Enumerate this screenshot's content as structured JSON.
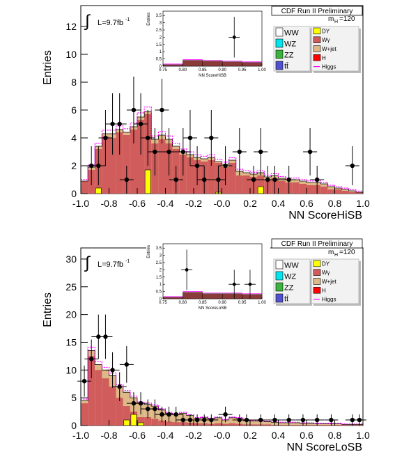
{
  "chart_data": [
    {
      "type": "bar",
      "title": "CDF Run II Preliminary",
      "xlabel": "NN ScoreHiSB",
      "ylabel": "Entries",
      "xlim": [
        -1.0,
        1.0
      ],
      "ylim": [
        0,
        13.5
      ],
      "yticks": [
        0,
        2,
        4,
        6,
        8,
        10,
        12
      ],
      "xticks": [
        "-1.0",
        "-0.8",
        "-0.6",
        "-0.4",
        "-0.2",
        "-0.0",
        "0.2",
        "0.4",
        "0.6",
        "0.8",
        "1.0"
      ],
      "lumi_label": "L=9.7fb",
      "lumi_sup": "-1",
      "integral_symbol": "∫",
      "mass_label": "m",
      "mass_sub": "H",
      "mass_value": "=120",
      "legend_left": [
        "WW",
        "WZ",
        "ZZ",
        "tt̄"
      ],
      "legend_right": [
        "DY",
        "Wγ",
        "W+jet",
        "H",
        "Higgs"
      ],
      "legend_colors": {
        "WW": "#ffffff",
        "WZ": "#00e5ee",
        "ZZ": "#3cb33c",
        "tt̄": "#5050d0",
        "DY": "#ffff00",
        "Wγ": "#d05c5c",
        "W+jet": "#deb887",
        "H": "#ff0000",
        "Higgs": "#ff00ff"
      },
      "bin_edges": [
        -1.0,
        0.05
      ],
      "wjet_top": [
        0.9,
        1.9,
        3.4,
        4.3,
        4.3,
        4.6,
        4.4,
        4.8,
        5.5,
        5.9,
        3.9,
        4.2,
        3.9,
        3.4,
        3.0,
        2.8,
        2.6,
        2.5,
        2.6,
        2.3,
        2.1,
        2.4,
        1.6,
        1.5,
        1.4,
        1.5,
        1.2,
        1.3,
        1.1,
        1.0,
        1.0,
        0.9,
        0.8,
        0.8,
        0.7,
        0.5,
        0.4,
        0.3,
        0.2,
        0.1
      ],
      "wg_top": [
        0.9,
        1.7,
        3.2,
        4.1,
        4.0,
        4.4,
        4.2,
        4.6,
        5.3,
        5.7,
        3.6,
        3.9,
        3.6,
        3.2,
        2.8,
        2.6,
        2.4,
        2.3,
        2.4,
        2.2,
        1.9,
        2.2,
        1.3,
        1.3,
        1.2,
        1.3,
        1.0,
        1.1,
        0.9,
        0.8,
        0.8,
        0.7,
        0.6,
        0.6,
        0.5,
        0.3,
        0.3,
        0.2,
        0.1,
        0.1
      ],
      "dy": [
        0,
        0,
        0.4,
        0,
        0,
        0,
        0,
        0,
        0,
        1.7,
        0,
        0,
        0,
        0,
        0,
        0,
        0,
        0,
        0,
        0.1,
        0,
        0,
        0,
        0,
        0,
        0.5,
        0,
        0,
        0,
        0,
        0,
        0,
        0,
        0,
        0,
        0,
        0,
        0,
        0,
        0
      ],
      "data_points": [
        {
          "x": -0.925,
          "y": 2,
          "err": 1.4
        },
        {
          "x": -0.875,
          "y": 2,
          "err": 1.4
        },
        {
          "x": -0.825,
          "y": 4,
          "err": 2.0
        },
        {
          "x": -0.775,
          "y": 5,
          "err": 2.2
        },
        {
          "x": -0.725,
          "y": 5,
          "err": 2.2
        },
        {
          "x": -0.675,
          "y": 1,
          "err": 1.0
        },
        {
          "x": -0.625,
          "y": 6,
          "err": 2.4
        },
        {
          "x": -0.575,
          "y": 5,
          "err": 2.2
        },
        {
          "x": -0.525,
          "y": 4,
          "err": 2.0
        },
        {
          "x": -0.475,
          "y": 3,
          "err": 1.7
        },
        {
          "x": -0.425,
          "y": 6,
          "err": 2.4
        },
        {
          "x": -0.375,
          "y": 3,
          "err": 1.7
        },
        {
          "x": -0.325,
          "y": 1,
          "err": 1.0
        },
        {
          "x": -0.275,
          "y": 3,
          "err": 1.7
        },
        {
          "x": -0.225,
          "y": 4,
          "err": 2.0
        },
        {
          "x": -0.175,
          "y": 2,
          "err": 1.4
        },
        {
          "x": -0.125,
          "y": 1,
          "err": 1.0
        },
        {
          "x": -0.075,
          "y": 4,
          "err": 2.0
        },
        {
          "x": -0.025,
          "y": 1,
          "err": 1.0
        },
        {
          "x": 0.025,
          "y": 2,
          "err": 1.4
        },
        {
          "x": 0.125,
          "y": 3,
          "err": 1.7
        },
        {
          "x": 0.225,
          "y": 1,
          "err": 1.0
        },
        {
          "x": 0.275,
          "y": 3,
          "err": 1.7
        },
        {
          "x": 0.325,
          "y": 1,
          "err": 1.0
        },
        {
          "x": 0.375,
          "y": 1,
          "err": 1.0
        },
        {
          "x": 0.475,
          "y": 1,
          "err": 1.0
        },
        {
          "x": 0.625,
          "y": 3,
          "err": 1.7
        },
        {
          "x": 0.675,
          "y": 1,
          "err": 1.0
        },
        {
          "x": 0.925,
          "y": 2,
          "err": 1.4
        }
      ],
      "inset": {
        "xlabel": "NN ScoreHiSB",
        "ylabel": "Entries",
        "xlim": [
          0.75,
          1.0
        ],
        "ylim": [
          0,
          3.8
        ],
        "xticks": [
          "0.75",
          "0.80",
          "0.85",
          "0.90",
          "0.95",
          "1.00"
        ],
        "yticks": [
          "0",
          "0.5",
          "1",
          "1.5",
          "2",
          "2.5",
          "3",
          "3.5"
        ],
        "bg_bins": [
          [
            0.75,
            0.8,
            0.1
          ],
          [
            0.8,
            0.85,
            0.4
          ],
          [
            0.85,
            0.9,
            0.35
          ],
          [
            0.9,
            0.95,
            0.3
          ],
          [
            0.95,
            1.0,
            0.25
          ]
        ],
        "data_points": [
          {
            "x": 0.93,
            "y": 2.0,
            "err": 1.4
          }
        ]
      }
    },
    {
      "type": "bar",
      "title": "CDF Run II Preliminary",
      "xlabel": "NN ScoreLoSB",
      "ylabel": "Entries",
      "xlim": [
        -1.0,
        1.0
      ],
      "ylim": [
        0,
        32
      ],
      "yticks": [
        0,
        5,
        10,
        15,
        20,
        25,
        30
      ],
      "xticks": [
        "-1.0",
        "-0.8",
        "-0.6",
        "-0.4",
        "-0.2",
        "-0.0",
        "0.2",
        "0.4",
        "0.6",
        "0.8",
        "1.0"
      ],
      "lumi_label": "L=9.7fb",
      "lumi_sup": "-1",
      "integral_symbol": "∫",
      "mass_label": "m",
      "mass_sub": "H",
      "mass_value": "=120",
      "legend_left": [
        "WW",
        "WZ",
        "ZZ",
        "tt̄"
      ],
      "legend_right": [
        "DY",
        "Wγ",
        "W+jet",
        "H",
        "Higgs"
      ],
      "legend_colors": {
        "WW": "#ffffff",
        "WZ": "#00e5ee",
        "ZZ": "#3cb33c",
        "tt̄": "#5050d0",
        "DY": "#ffff00",
        "Wγ": "#d05c5c",
        "W+jet": "#deb887",
        "H": "#ff0000",
        "Higgs": "#ff00ff"
      },
      "bin_edges": [
        -1.0,
        0.05
      ],
      "wjet_top": [
        4.5,
        13.5,
        11.0,
        10.0,
        9.0,
        7.0,
        6.0,
        5.0,
        4.0,
        3.8,
        3.5,
        2.8,
        2.2,
        2.0,
        2.2,
        1.8,
        1.3,
        1.4,
        1.2,
        1.4,
        1.0,
        1.4,
        1.3,
        0.9,
        0.8,
        0.8,
        0.7,
        0.6,
        0.5,
        0.5,
        0.5,
        0.4,
        0.4,
        0.3,
        0.3,
        0.3,
        0.3,
        0.2,
        0.2,
        0.2
      ],
      "wg_top": [
        4.0,
        12.5,
        10.0,
        8.5,
        7.0,
        5.0,
        3.5,
        2.5,
        1.5,
        1.5,
        1.2,
        0.9,
        0.7,
        0.6,
        0.6,
        0.5,
        0.4,
        0.4,
        0.3,
        0.4,
        0.3,
        0.4,
        0.3,
        0.2,
        0.2,
        0.2,
        0.2,
        0.1,
        0.1,
        0.1,
        0.1,
        0.1,
        0.1,
        0.1,
        0.1,
        0.1,
        0.1,
        0.1,
        0.1,
        0.1
      ],
      "dy": [
        0,
        0,
        0,
        0,
        0,
        0,
        1.0,
        2.0,
        0.5,
        0,
        0,
        0,
        0,
        0,
        0,
        0,
        0,
        0,
        0,
        0,
        0,
        0,
        0,
        0,
        0,
        0,
        0,
        0,
        0,
        0,
        0,
        0,
        0,
        0,
        0,
        0,
        0,
        0,
        0,
        0
      ],
      "data_points": [
        {
          "x": -0.975,
          "y": 8,
          "err": 2.8
        },
        {
          "x": -0.925,
          "y": 12,
          "err": 3.5
        },
        {
          "x": -0.875,
          "y": 16,
          "err": 4.0
        },
        {
          "x": -0.825,
          "y": 16,
          "err": 4.0
        },
        {
          "x": -0.775,
          "y": 10,
          "err": 3.2
        },
        {
          "x": -0.725,
          "y": 7,
          "err": 2.6
        },
        {
          "x": -0.675,
          "y": 11,
          "err": 3.3
        },
        {
          "x": -0.625,
          "y": 4,
          "err": 2.0
        },
        {
          "x": -0.575,
          "y": 4,
          "err": 2.0
        },
        {
          "x": -0.525,
          "y": 3,
          "err": 1.7
        },
        {
          "x": -0.475,
          "y": 3,
          "err": 1.7
        },
        {
          "x": -0.425,
          "y": 2,
          "err": 1.4
        },
        {
          "x": -0.375,
          "y": 2,
          "err": 1.4
        },
        {
          "x": -0.325,
          "y": 2,
          "err": 1.4
        },
        {
          "x": -0.275,
          "y": 1,
          "err": 1.0
        },
        {
          "x": -0.225,
          "y": 1,
          "err": 1.0
        },
        {
          "x": -0.175,
          "y": 1,
          "err": 1.0
        },
        {
          "x": -0.125,
          "y": 1,
          "err": 1.0
        },
        {
          "x": -0.075,
          "y": 1,
          "err": 1.0
        },
        {
          "x": 0.025,
          "y": 2,
          "err": 1.4
        },
        {
          "x": 0.125,
          "y": 1,
          "err": 1.0
        },
        {
          "x": 0.175,
          "y": 1,
          "err": 1.0
        },
        {
          "x": 0.275,
          "y": 1,
          "err": 1.0
        },
        {
          "x": 0.375,
          "y": 1,
          "err": 1.0
        },
        {
          "x": 0.475,
          "y": 1,
          "err": 1.0
        },
        {
          "x": 0.575,
          "y": 1,
          "err": 1.0
        },
        {
          "x": 0.675,
          "y": 1,
          "err": 1.0
        },
        {
          "x": 0.775,
          "y": 1,
          "err": 1.0
        },
        {
          "x": 0.925,
          "y": 1,
          "err": 1.0
        },
        {
          "x": 0.975,
          "y": 1,
          "err": 1.0
        }
      ],
      "inset": {
        "xlabel": "NN ScoreLoSB",
        "ylabel": "Entries",
        "xlim": [
          0.75,
          1.0
        ],
        "ylim": [
          0,
          3.8
        ],
        "xticks": [
          "0.75",
          "0.80",
          "0.85",
          "0.90",
          "0.95",
          "1.00"
        ],
        "yticks": [
          "0",
          "0.5",
          "1",
          "1.5",
          "2",
          "2.5",
          "3",
          "3.5"
        ],
        "bg_bins": [
          [
            0.75,
            0.8,
            0.1
          ],
          [
            0.8,
            0.85,
            0.45
          ],
          [
            0.85,
            0.9,
            0.35
          ],
          [
            0.9,
            0.95,
            0.35
          ],
          [
            0.95,
            1.0,
            0.3
          ]
        ],
        "data_points": [
          {
            "x": 0.81,
            "y": 2.0,
            "err": 1.4
          },
          {
            "x": 0.93,
            "y": 1.0,
            "err": 1.0
          },
          {
            "x": 0.97,
            "y": 1.0,
            "err": 1.0
          }
        ]
      }
    }
  ]
}
